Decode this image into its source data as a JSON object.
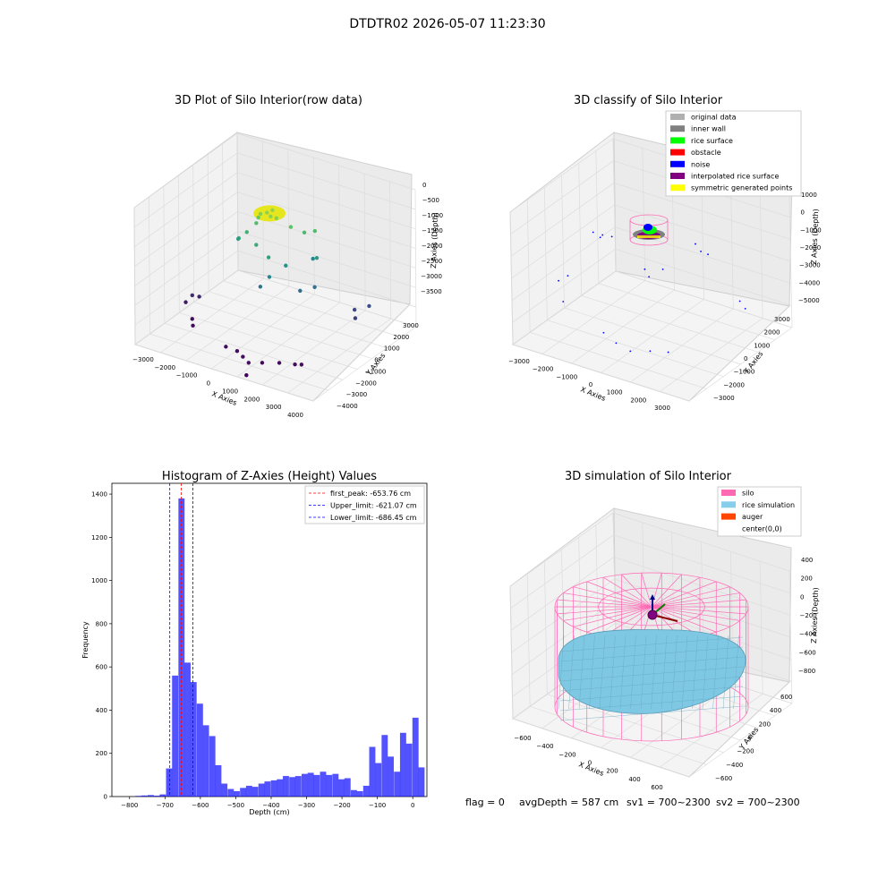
{
  "suptitle": "DTDTR02 2026-05-07 11:23:30",
  "footer": {
    "flag": "flag = 0",
    "avg": "avgDepth = 587 cm",
    "sv1": "sv1 = 700~2300",
    "sv2": "sv2 = 700~2300"
  },
  "chart_data": [
    {
      "type": "scatter",
      "projection": "3d",
      "title": "3D Plot of Silo Interior(row data)",
      "xlabel": "X Axies",
      "ylabel": "Y Axies",
      "zlabel": "Z Axies (Depth)",
      "xticks": [
        "−3000",
        "−2000",
        "−1000",
        "0",
        "1000",
        "2000",
        "3000",
        "4000"
      ],
      "yticks": [
        "−4000",
        "−3000",
        "−2000",
        "−1000",
        "0",
        "1000",
        "2000",
        "3000"
      ],
      "zticks": [
        "0",
        "−500",
        "−1000",
        "−1500",
        "−2000",
        "−2500",
        "−3000",
        "−3500"
      ],
      "xlim": [
        -3000,
        4000
      ],
      "ylim": [
        -4000,
        3000
      ],
      "zlim": [
        -3700,
        0
      ],
      "colormap": "viridis (colored by depth)",
      "points": [
        {
          "x": -300,
          "y": -100,
          "z": -700
        },
        {
          "x": -100,
          "y": 0,
          "z": -650
        },
        {
          "x": 100,
          "y": -100,
          "z": -680
        },
        {
          "x": 300,
          "y": -50,
          "z": -700
        },
        {
          "x": 0,
          "y": 200,
          "z": -620
        },
        {
          "x": -500,
          "y": 100,
          "z": -900
        },
        {
          "x": -700,
          "y": 300,
          "z": -1150
        },
        {
          "x": -900,
          "y": 0,
          "z": -1350
        },
        {
          "x": -1100,
          "y": -200,
          "z": -1500
        },
        {
          "x": -1300,
          "y": 100,
          "z": -1650
        },
        {
          "x": 600,
          "y": 400,
          "z": -1000
        },
        {
          "x": 900,
          "y": 800,
          "z": -1200
        },
        {
          "x": 1200,
          "y": 1000,
          "z": -1150
        },
        {
          "x": 300,
          "y": -600,
          "z": -1600
        },
        {
          "x": -300,
          "y": -400,
          "z": -1450
        },
        {
          "x": 500,
          "y": -900,
          "z": -2000
        },
        {
          "x": 800,
          "y": -300,
          "z": -1800
        },
        {
          "x": 1500,
          "y": 600,
          "z": -1700
        },
        {
          "x": 1000,
          "y": 1200,
          "z": -2000
        },
        {
          "x": 200,
          "y": -1000,
          "z": -2300
        },
        {
          "x": 1300,
          "y": -200,
          "z": -2400
        },
        {
          "x": 1700,
          "y": 100,
          "z": -2300
        },
        {
          "x": 2800,
          "y": 900,
          "z": -2900
        },
        {
          "x": 3000,
          "y": 600,
          "z": -3000
        },
        {
          "x": 3200,
          "y": 1200,
          "z": -2800
        },
        {
          "x": -2500,
          "y": -500,
          "z": -3300
        },
        {
          "x": -2600,
          "y": -800,
          "z": -3200
        },
        {
          "x": -2800,
          "y": -900,
          "z": -3400
        },
        {
          "x": -2200,
          "y": -1500,
          "z": -3550
        },
        {
          "x": -2000,
          "y": -1800,
          "z": -3600
        },
        {
          "x": -300,
          "y": -2500,
          "z": -3600
        },
        {
          "x": 200,
          "y": -2600,
          "z": -3580
        },
        {
          "x": 600,
          "y": -2900,
          "z": -3560
        },
        {
          "x": 1000,
          "y": -3200,
          "z": -3550
        },
        {
          "x": 1300,
          "y": -2800,
          "z": -3600
        },
        {
          "x": 1800,
          "y": -2500,
          "z": -3580
        },
        {
          "x": 2300,
          "y": -2300,
          "z": -3570
        },
        {
          "x": 2500,
          "y": -2200,
          "z": -3560
        },
        {
          "x": 1200,
          "y": -3700,
          "z": -3700
        }
      ]
    },
    {
      "type": "scatter",
      "projection": "3d",
      "title": "3D classify of Silo Interior",
      "xlabel": "X Axies",
      "ylabel": "Y Axies",
      "zlabel": "Z Axies (Depth)",
      "xticks": [
        "−3000",
        "−2000",
        "−1000",
        "0",
        "1000",
        "2000",
        "3000"
      ],
      "yticks": [
        "−3000",
        "−2000",
        "−1000",
        "0",
        "1000",
        "2000",
        "3000"
      ],
      "zticks": [
        "1000",
        "0",
        "−1000",
        "−2000",
        "−3000",
        "−4000",
        "−5000"
      ],
      "xlim": [
        -3000,
        3000
      ],
      "ylim": [
        -3000,
        3000
      ],
      "zlim": [
        -5000,
        1000
      ],
      "legend_position": "top-right",
      "series": [
        {
          "name": "original data",
          "color": "#b0b0b0"
        },
        {
          "name": "inner wall",
          "color": "#808080"
        },
        {
          "name": "rice surface",
          "color": "#00ff00"
        },
        {
          "name": "obstacle",
          "color": "#ff0000"
        },
        {
          "name": "noise",
          "color": "#0000ff"
        },
        {
          "name": "interpolated rice surface",
          "color": "#800080"
        },
        {
          "name": "symmetric generated points",
          "color": "#ffff00"
        }
      ],
      "noise_points": [
        {
          "x": -1600,
          "y": -200,
          "z": -1100
        },
        {
          "x": -1700,
          "y": 100,
          "z": -1200
        },
        {
          "x": -1500,
          "y": 300,
          "z": -1300
        },
        {
          "x": -1900,
          "y": -100,
          "z": -1050
        },
        {
          "x": 1000,
          "y": 900,
          "z": -900
        },
        {
          "x": 1300,
          "y": 700,
          "z": -1000
        },
        {
          "x": 1600,
          "y": 600,
          "z": -950
        },
        {
          "x": 400,
          "y": -800,
          "z": -1700
        },
        {
          "x": 200,
          "y": -700,
          "z": -1500
        },
        {
          "x": 700,
          "y": -500,
          "z": -1400
        },
        {
          "x": 2600,
          "y": 700,
          "z": -2700
        },
        {
          "x": 2900,
          "y": 500,
          "z": -2800
        },
        {
          "x": -2500,
          "y": -600,
          "z": -3000
        },
        {
          "x": -2700,
          "y": -800,
          "z": -3200
        },
        {
          "x": -2200,
          "y": -1400,
          "z": -3600
        },
        {
          "x": -300,
          "y": -2300,
          "z": -3700
        },
        {
          "x": 300,
          "y": -2600,
          "z": -3750
        },
        {
          "x": 900,
          "y": -2800,
          "z": -3750
        },
        {
          "x": 1400,
          "y": -2500,
          "z": -3700
        },
        {
          "x": 1900,
          "y": -2300,
          "z": -3650
        }
      ]
    },
    {
      "type": "bar",
      "title": "Histogram of Z-Axies (Height) Values",
      "xlabel": "Depth (cm)",
      "ylabel": "Frequency",
      "xlim": [
        -850,
        40
      ],
      "ylim": [
        0,
        1450
      ],
      "xticks": [
        -800,
        -700,
        -600,
        -500,
        -400,
        -300,
        -200,
        -100,
        0
      ],
      "yticks": [
        0,
        200,
        400,
        600,
        800,
        1000,
        1200,
        1400
      ],
      "bin_width": 17.4,
      "bar_color": "#0000ff",
      "bins": [
        {
          "x0": -784,
          "v": 3
        },
        {
          "x0": -767,
          "v": 5
        },
        {
          "x0": -749,
          "v": 7
        },
        {
          "x0": -732,
          "v": 4
        },
        {
          "x0": -715,
          "v": 10
        },
        {
          "x0": -697,
          "v": 130
        },
        {
          "x0": -680,
          "v": 560
        },
        {
          "x0": -662,
          "v": 1380
        },
        {
          "x0": -645,
          "v": 620
        },
        {
          "x0": -628,
          "v": 530
        },
        {
          "x0": -610,
          "v": 430
        },
        {
          "x0": -593,
          "v": 330
        },
        {
          "x0": -575,
          "v": 280
        },
        {
          "x0": -558,
          "v": 145
        },
        {
          "x0": -541,
          "v": 60
        },
        {
          "x0": -523,
          "v": 35
        },
        {
          "x0": -506,
          "v": 25
        },
        {
          "x0": -488,
          "v": 40
        },
        {
          "x0": -471,
          "v": 50
        },
        {
          "x0": -454,
          "v": 45
        },
        {
          "x0": -436,
          "v": 60
        },
        {
          "x0": -419,
          "v": 70
        },
        {
          "x0": -401,
          "v": 75
        },
        {
          "x0": -384,
          "v": 80
        },
        {
          "x0": -367,
          "v": 95
        },
        {
          "x0": -349,
          "v": 90
        },
        {
          "x0": -332,
          "v": 95
        },
        {
          "x0": -314,
          "v": 105
        },
        {
          "x0": -297,
          "v": 110
        },
        {
          "x0": -280,
          "v": 100
        },
        {
          "x0": -262,
          "v": 115
        },
        {
          "x0": -245,
          "v": 100
        },
        {
          "x0": -227,
          "v": 105
        },
        {
          "x0": -210,
          "v": 80
        },
        {
          "x0": -193,
          "v": 85
        },
        {
          "x0": -175,
          "v": 30
        },
        {
          "x0": -158,
          "v": 25
        },
        {
          "x0": -140,
          "v": 50
        },
        {
          "x0": -123,
          "v": 230
        },
        {
          "x0": -106,
          "v": 155
        },
        {
          "x0": -88,
          "v": 285
        },
        {
          "x0": -71,
          "v": 185
        },
        {
          "x0": -53,
          "v": 115
        },
        {
          "x0": -36,
          "v": 295
        },
        {
          "x0": -19,
          "v": 245
        },
        {
          "x0": -1,
          "v": 365
        },
        {
          "x0": 16,
          "v": 135
        }
      ],
      "vlines": [
        {
          "label": "first_peak: -653.76 cm",
          "x": -653.76,
          "color": "#ff0000"
        },
        {
          "label": "Upper_limit: -621.07 cm",
          "x": -621.07,
          "color": "#0000ff"
        },
        {
          "label": "Lower_limit: -686.45 cm",
          "x": -686.45,
          "color": "#0000ff"
        }
      ],
      "legend_position": "top-right"
    },
    {
      "type": "surface",
      "projection": "3d",
      "title": "3D simulation of Silo Interior",
      "xlabel": "X Axies",
      "ylabel": "Y Axies",
      "zlabel": "Z Axies (Depth)",
      "xticks": [
        "−600",
        "−400",
        "−200",
        "0",
        "200",
        "400",
        "600"
      ],
      "yticks": [
        "−600",
        "−400",
        "−200",
        "0",
        "200",
        "400",
        "600"
      ],
      "zticks": [
        "400",
        "200",
        "0",
        "−200",
        "−400",
        "−600",
        "−800"
      ],
      "xlim": [
        -650,
        650
      ],
      "ylim": [
        -650,
        650
      ],
      "zlim": [
        -900,
        450
      ],
      "legend_position": "top-right",
      "series": [
        {
          "name": "silo",
          "color": "#ff69b4"
        },
        {
          "name": "rice simulation",
          "color": "#87ceeb"
        },
        {
          "name": "auger",
          "color": "#ff4500"
        },
        {
          "name": "center(0,0)",
          "color": "#ffffff"
        }
      ]
    }
  ]
}
